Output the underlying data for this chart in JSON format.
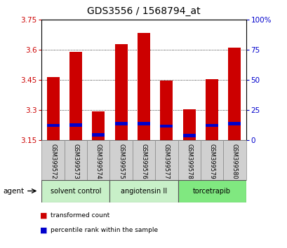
{
  "title": "GDS3556 / 1568794_at",
  "samples": [
    "GSM399572",
    "GSM399573",
    "GSM399574",
    "GSM399575",
    "GSM399576",
    "GSM399577",
    "GSM399578",
    "GSM399579",
    "GSM399580"
  ],
  "bar_tops": [
    3.465,
    3.59,
    3.295,
    3.63,
    3.685,
    3.448,
    3.303,
    3.455,
    3.61
  ],
  "bar_bottom": 3.15,
  "blue_bottoms": [
    3.215,
    3.218,
    3.168,
    3.222,
    3.222,
    3.212,
    3.165,
    3.215,
    3.222
  ],
  "blue_tops": [
    3.232,
    3.235,
    3.185,
    3.24,
    3.24,
    3.228,
    3.182,
    3.232,
    3.24
  ],
  "ylim_left": [
    3.15,
    3.75
  ],
  "ylim_right": [
    0,
    100
  ],
  "yticks_left": [
    3.15,
    3.3,
    3.45,
    3.6,
    3.75
  ],
  "yticks_right": [
    0,
    25,
    50,
    75,
    100
  ],
  "ytick_labels_left": [
    "3.15",
    "3.3",
    "3.45",
    "3.6",
    "3.75"
  ],
  "ytick_labels_right": [
    "0",
    "25",
    "50",
    "75",
    "100%"
  ],
  "groups": [
    {
      "label": "solvent control",
      "start": 0,
      "end": 2,
      "color": "#c8f0c8"
    },
    {
      "label": "angiotensin II",
      "start": 3,
      "end": 5,
      "color": "#c8f0c8"
    },
    {
      "label": "torcetrapib",
      "start": 6,
      "end": 8,
      "color": "#80e880"
    }
  ],
  "agent_label": "agent",
  "legend_items": [
    {
      "label": "transformed count",
      "color": "#cc0000"
    },
    {
      "label": "percentile rank within the sample",
      "color": "#0000cc"
    }
  ],
  "bar_color": "#cc0000",
  "blue_color": "#0000cc",
  "red_color": "#cc0000",
  "title_fontsize": 10,
  "tick_fontsize": 7.5,
  "xlabel_area_color": "#d0d0d0",
  "background_color": "#ffffff",
  "plot_bg_color": "#ffffff"
}
